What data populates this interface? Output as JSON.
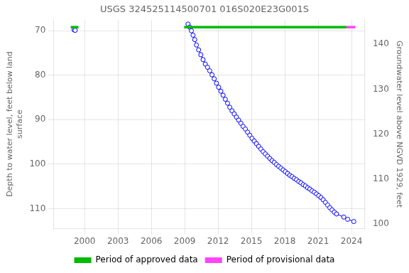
{
  "chart_data": {
    "type": "line",
    "title": "USGS 324525114500701 016S020E23G001S",
    "ylabel": "Depth to water level, feet below land\nsurface",
    "y2label": "Groundwater level above NGVD 1929, feet",
    "xlim": [
      1997.2,
      2025.2
    ],
    "xticks": [
      2000,
      2003,
      2006,
      2009,
      2012,
      2015,
      2018,
      2021,
      2024
    ],
    "ylim": [
      114.5,
      67.5
    ],
    "yticks": [
      70,
      80,
      90,
      100,
      110
    ],
    "y2lim": [
      99.0,
      145.5
    ],
    "y2ticks": [
      100,
      110,
      120,
      130,
      140
    ],
    "grid": true,
    "legend": "bottom",
    "series": [
      {
        "color": "#0000ff",
        "marker": "circle",
        "line_style": "solid",
        "x": [
          1999.05,
          1999.15
        ],
        "values": [
          69.8,
          69.9
        ]
      },
      {
        "color": "#0000ff",
        "marker": "circle",
        "line_style": "solid",
        "x": [
          2009.3,
          2009.45,
          2009.6,
          2009.75,
          2009.9,
          2010.05,
          2010.25,
          2010.45,
          2010.65,
          2010.85,
          2011.05,
          2011.25,
          2011.45,
          2011.65,
          2011.85,
          2012.05,
          2012.25,
          2012.45,
          2012.65,
          2012.85,
          2013.05,
          2013.25,
          2013.45,
          2013.65,
          2013.85,
          2014.05,
          2014.25,
          2014.45,
          2014.65,
          2014.85,
          2015.05,
          2015.25,
          2015.45,
          2015.65,
          2015.85,
          2016.05,
          2016.25,
          2016.45,
          2016.65,
          2016.85,
          2017.05,
          2017.25,
          2017.45,
          2017.65,
          2017.85,
          2018.05,
          2018.25,
          2018.45,
          2018.65,
          2018.85,
          2019.05,
          2019.25,
          2019.45,
          2019.65,
          2019.85,
          2020.05,
          2020.25,
          2020.45,
          2020.65,
          2020.85,
          2021.05,
          2021.25,
          2021.45,
          2021.65,
          2021.85,
          2022.05,
          2022.25,
          2022.45,
          2022.65,
          2023.3,
          2023.65,
          2024.2
        ],
        "values": [
          68.5,
          69.2,
          70.0,
          71.0,
          72.0,
          73.2,
          74.3,
          75.4,
          76.5,
          77.5,
          78.2,
          79.0,
          79.9,
          80.8,
          81.8,
          82.7,
          83.6,
          84.5,
          85.4,
          86.3,
          87.2,
          88.0,
          88.7,
          89.4,
          90.1,
          90.8,
          91.5,
          92.1,
          92.8,
          93.5,
          94.2,
          94.8,
          95.4,
          96.0,
          96.6,
          97.2,
          97.7,
          98.2,
          98.7,
          99.2,
          99.6,
          100.1,
          100.5,
          100.9,
          101.3,
          101.7,
          102.1,
          102.5,
          102.8,
          103.2,
          103.5,
          103.9,
          104.2,
          104.6,
          104.9,
          105.3,
          105.6,
          106.0,
          106.3,
          106.7,
          107.1,
          107.5,
          108.0,
          108.6,
          109.2,
          109.8,
          110.3,
          110.8,
          111.2,
          111.9,
          112.4,
          112.9
        ]
      }
    ],
    "periods": [
      {
        "name": "Period of approved data",
        "color": "#00bb00",
        "ranges": [
          [
            1998.75,
            1999.45
          ],
          [
            2008.95,
            2023.55
          ]
        ]
      },
      {
        "name": "Period of provisional data",
        "color": "#ff44ff",
        "ranges": [
          [
            2023.55,
            2024.35
          ]
        ]
      }
    ]
  }
}
